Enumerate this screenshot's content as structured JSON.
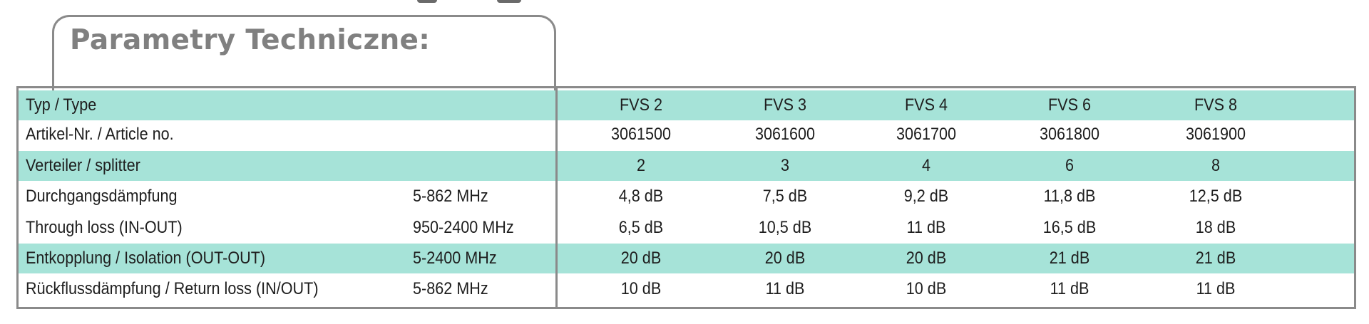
{
  "title": "Parametry Techniczne:",
  "table": {
    "models": [
      "FVS 2",
      "FVS 3",
      "FVS 4",
      "FVS 6",
      "FVS 8"
    ],
    "rows": [
      {
        "label": "Typ / Type",
        "freq": "",
        "values": [
          "FVS 2",
          "FVS 3",
          "FVS 4",
          "FVS 6",
          "FVS 8"
        ],
        "highlight": true
      },
      {
        "label": "Artikel-Nr. / Article no.",
        "freq": "",
        "values": [
          "3061500",
          "3061600",
          "3061700",
          "3061800",
          "3061900"
        ],
        "highlight": false
      },
      {
        "label": "Verteiler / splitter",
        "freq": "",
        "values": [
          "2",
          "3",
          "4",
          "6",
          "8"
        ],
        "highlight": true
      },
      {
        "label": "Durchgangsdämpfung",
        "freq": "5-862 MHz",
        "values": [
          "4,8 dB",
          "7,5 dB",
          "9,2 dB",
          "11,8 dB",
          "12,5 dB"
        ],
        "highlight": false
      },
      {
        "label": "Through loss (IN-OUT)",
        "freq": "950-2400 MHz",
        "values": [
          "6,5 dB",
          "10,5 dB",
          "11 dB",
          "16,5 dB",
          "18 dB"
        ],
        "highlight": false
      },
      {
        "label": "Entkopplung / Isolation (OUT-OUT)",
        "freq": "5-2400 MHz",
        "values": [
          "20 dB",
          "20 dB",
          "20 dB",
          "21 dB",
          "21 dB"
        ],
        "highlight": true
      },
      {
        "label": "Rückflussdämpfung / Return loss (IN/OUT)",
        "freq": "5-862 MHz",
        "values": [
          "10 dB",
          "11 dB",
          "10 dB",
          "11 dB",
          "11 dB"
        ],
        "highlight": false
      }
    ]
  },
  "colors": {
    "highlight": "#a6e3d8",
    "border": "#8a8a8a",
    "title": "#808080"
  }
}
